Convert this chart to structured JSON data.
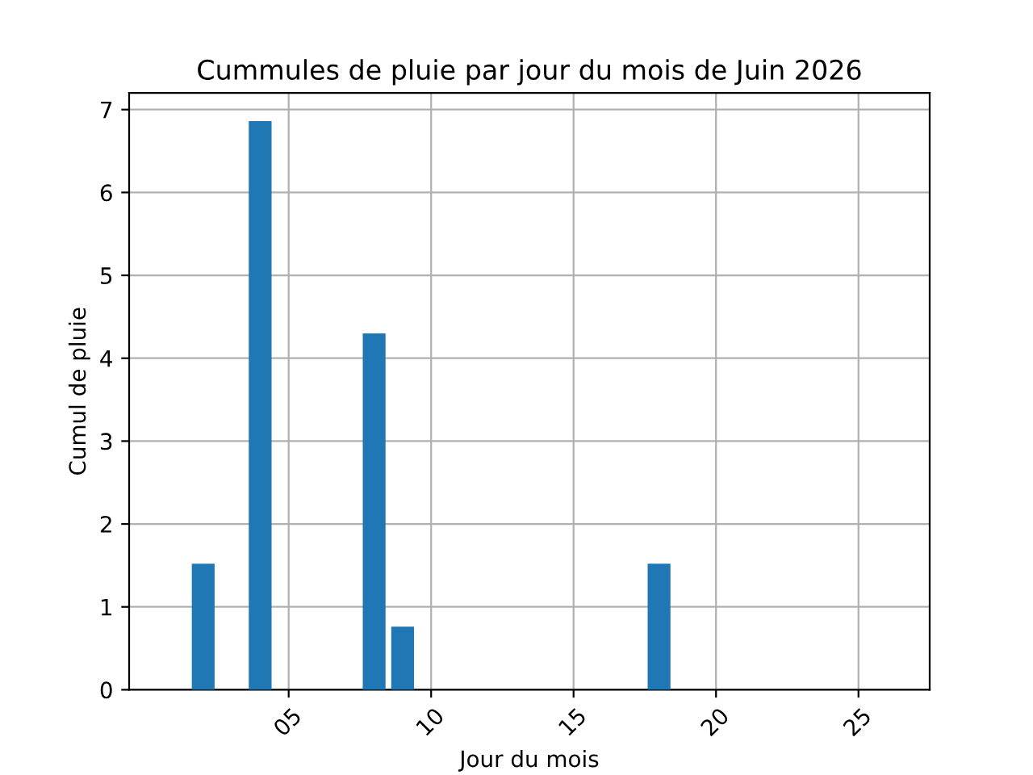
{
  "chart_data": {
    "type": "bar",
    "title": "Cummules de pluie par jour du mois de Juin 2026",
    "xlabel": "Jour du mois",
    "ylabel": "Cumul de pluie",
    "x": [
      2,
      4,
      8,
      9,
      18
    ],
    "values": [
      1.52,
      6.86,
      4.3,
      0.76,
      1.52
    ],
    "color": "#1f77b4",
    "xlim": [
      -0.6,
      27.5
    ],
    "xticks": [
      {
        "value": 5,
        "label": "05"
      },
      {
        "value": 10,
        "label": "10"
      },
      {
        "value": 15,
        "label": "15"
      },
      {
        "value": 20,
        "label": "20"
      },
      {
        "value": 25,
        "label": "25"
      }
    ],
    "ylim": [
      0,
      7.2
    ],
    "yticks": [
      0,
      1,
      2,
      3,
      4,
      5,
      6,
      7
    ],
    "grid": true
  }
}
